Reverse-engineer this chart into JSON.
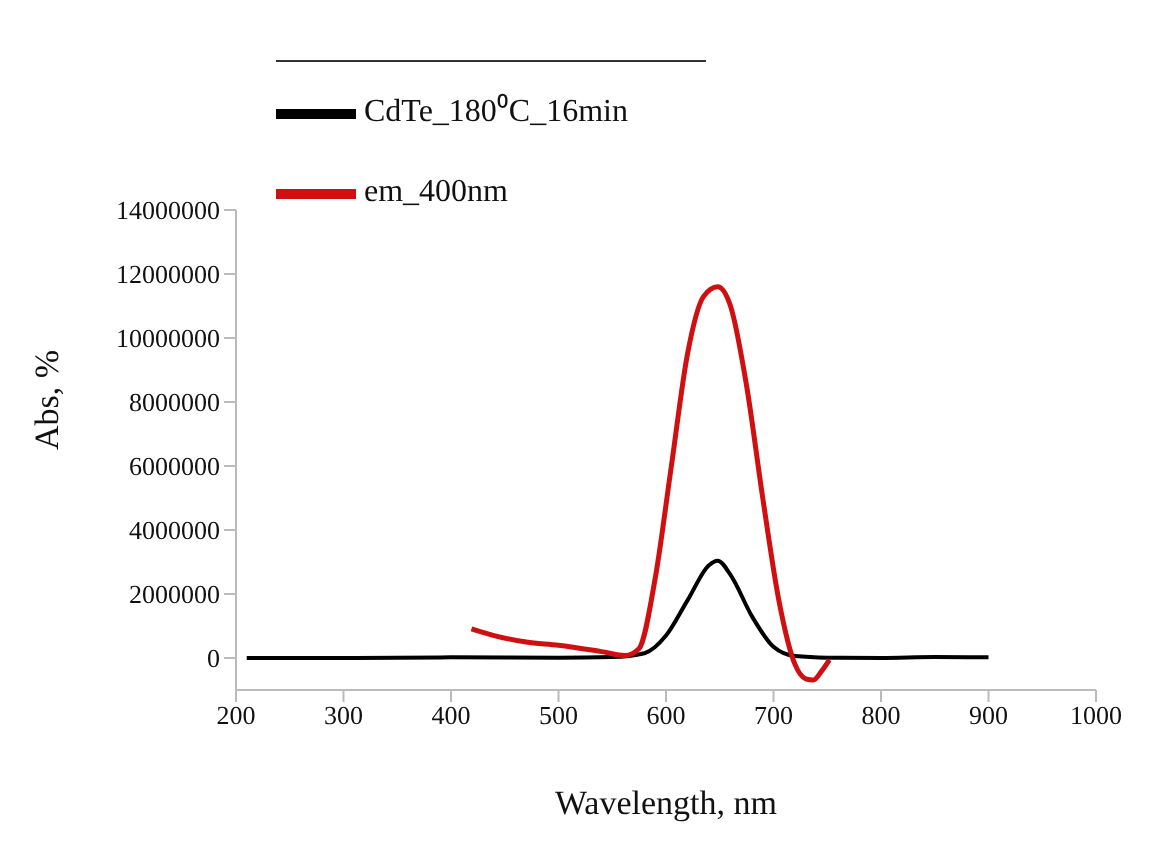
{
  "chart_data": {
    "type": "line",
    "xlabel": "Wavelength, nm",
    "ylabel": "Abs, %",
    "xlim": [
      200,
      1000
    ],
    "xticks": [
      200,
      300,
      400,
      500,
      600,
      700,
      800,
      900,
      1000
    ],
    "ylim": [
      -1000000,
      14000000
    ],
    "yticks": [
      0,
      2000000,
      4000000,
      6000000,
      8000000,
      10000000,
      12000000,
      14000000
    ],
    "grid": false,
    "legend": "top left",
    "marker": "none",
    "line_style": "solid",
    "series": [
      {
        "name": "CdTe_180⁰C_16min",
        "color": "#000000",
        "x": [
          210,
          300,
          400,
          500,
          550,
          580,
          600,
          620,
          640,
          648,
          660,
          680,
          700,
          720,
          750,
          800,
          850,
          900
        ],
        "values": [
          0,
          0,
          20000,
          10000,
          30000,
          150000,
          700000,
          1800000,
          2900000,
          3040000,
          2600000,
          1300000,
          350000,
          60000,
          10000,
          0,
          30000,
          20000
        ]
      },
      {
        "name": "em_400nm",
        "color": "#d01010",
        "x": [
          419,
          440,
          470,
          500,
          540,
          562,
          575,
          590,
          605,
          620,
          635,
          648,
          660,
          675,
          690,
          705,
          720,
          730,
          737,
          745,
          752
        ],
        "values": [
          910000,
          700000,
          500000,
          400000,
          200000,
          80000,
          300000,
          2500000,
          6000000,
          9500000,
          11300000,
          11600000,
          11000000,
          8500000,
          5000000,
          1800000,
          -200000,
          -650000,
          -690000,
          -400000,
          -60000
        ]
      }
    ]
  }
}
